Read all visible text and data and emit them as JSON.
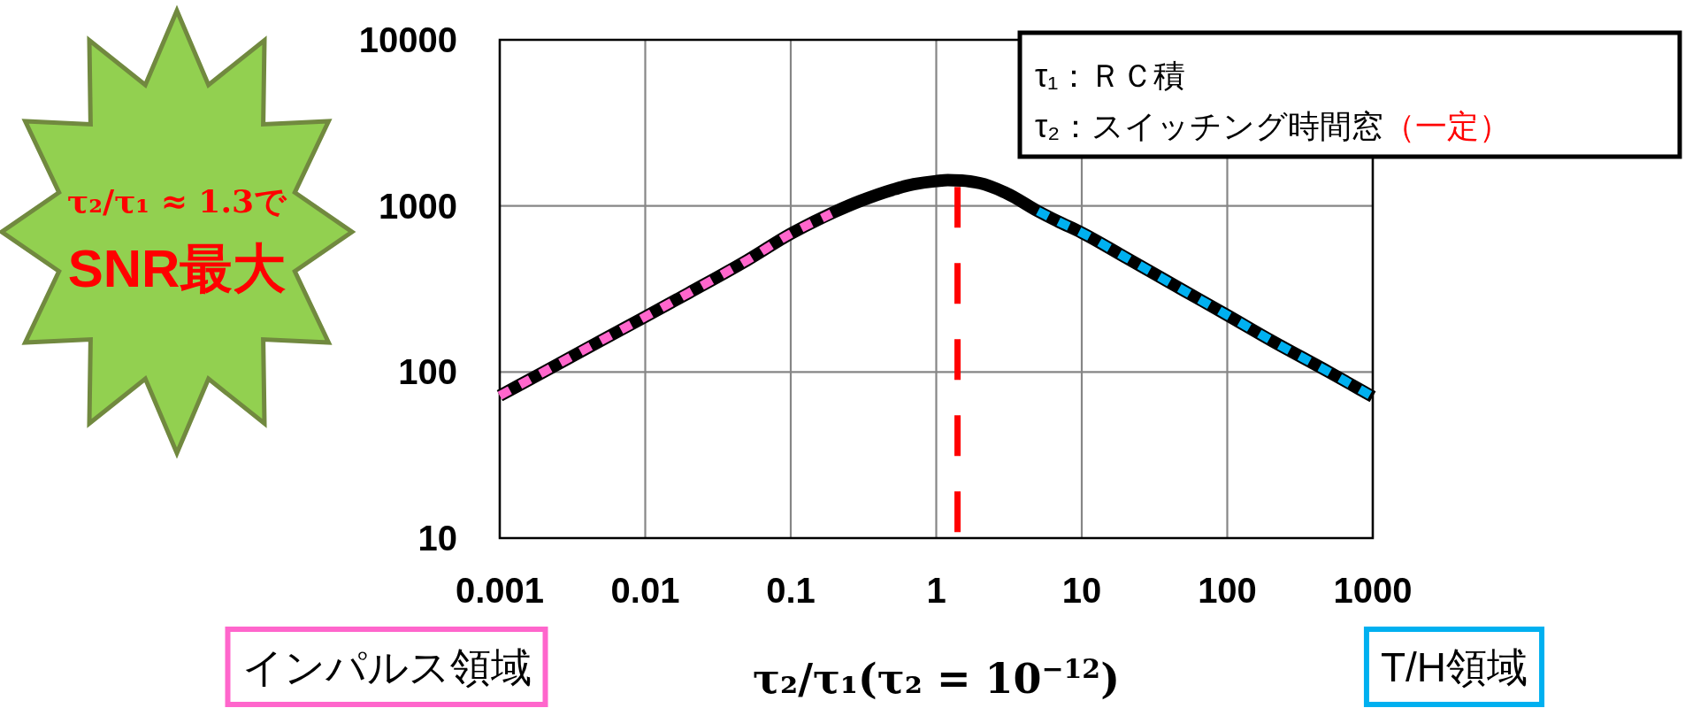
{
  "chart_data": {
    "type": "line",
    "xlabel": "τ₂/τ₁(τ₂ = 10$^{−12}$)",
    "series": [
      {
        "color": "#000000",
        "line_style": "solid",
        "x": [
          0.001,
          0.002,
          0.005,
          0.01,
          0.02,
          0.05,
          0.1,
          0.2,
          0.3,
          0.5,
          0.7,
          1,
          1.2,
          1.5,
          2,
          3,
          5,
          7,
          10,
          20,
          50,
          100,
          200,
          500,
          1000
        ],
        "values": [
          72,
          100,
          155,
          215,
          300,
          470,
          680,
          920,
          1070,
          1250,
          1350,
          1410,
          1430,
          1420,
          1370,
          1200,
          930,
          800,
          690,
          490,
          310,
          220,
          155,
          100,
          71
        ]
      },
      {
        "name": "インパルス領域",
        "color": "#ff66cc",
        "line_style": "dashed",
        "x": [
          0.001,
          0.002,
          0.005,
          0.01,
          0.02,
          0.05,
          0.1,
          0.19
        ],
        "values": [
          72,
          100,
          155,
          215,
          300,
          470,
          680,
          900
        ]
      },
      {
        "name": "T/H領域",
        "color": "#00b0f0",
        "line_style": "dashed",
        "x": [
          5,
          7,
          10,
          20,
          50,
          100,
          200,
          500,
          1000
        ],
        "values": [
          930,
          800,
          690,
          490,
          310,
          220,
          155,
          100,
          71
        ]
      },
      {
        "color": "#ff0000",
        "line_style": "dashed",
        "x": [
          1.4,
          1.4
        ],
        "values": [
          1300,
          10
        ]
      }
    ],
    "xlim": [
      0.001,
      1000
    ],
    "ylim": [
      10,
      10000
    ],
    "xticks": [
      0.001,
      0.01,
      0.1,
      1,
      10,
      100,
      1000
    ],
    "yticks": [
      10,
      100,
      1000,
      10000
    ],
    "log": "xy",
    "grid": true,
    "legend": "bottom",
    "annotations": [
      "τ₁：ＲＣ積",
      "τ₂：スイッチング時間窓",
      "（一定）",
      "τ₂/τ₁ ≈ 1.3で",
      "SNR最大"
    ]
  }
}
